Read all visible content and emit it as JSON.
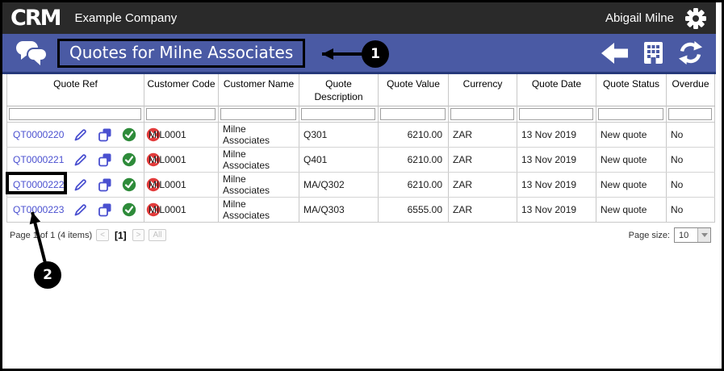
{
  "topbar": {
    "logo": "CRM",
    "company": "Example Company",
    "user": "Abigail Milne"
  },
  "toolbar": {
    "title": "Quotes for Milne Associates"
  },
  "icons": {
    "topbar_right": "gear-icon",
    "toolbar_left": "chat-bubbles-icon",
    "toolbar_right": [
      "back-arrow-icon",
      "building-icon",
      "refresh-icon"
    ],
    "row_actions": [
      "pencil-edit-icon",
      "copy-icon",
      "check-circle-icon",
      "x-circle-icon"
    ]
  },
  "colors": {
    "topbar_bg": "#2a2a2a",
    "toolbar_bg": "#4a5aa4",
    "toolbar_border": "#26397a",
    "link_blue": "#4a50d0",
    "action_green": "#2e8b3a",
    "action_red": "#e23b3b",
    "annotation_black": "#000000"
  },
  "table": {
    "columns": [
      "Quote Ref",
      "Customer Code",
      "Customer Name",
      "Quote Description",
      "Quote Value",
      "Currency",
      "Quote Date",
      "Quote Status",
      "Overdue"
    ],
    "rows": [
      {
        "ref": "QT0000220",
        "code": "MIL0001",
        "name": "Milne Associates",
        "desc": "Q301",
        "value": "6210.00",
        "currency": "ZAR",
        "date": "13 Nov 2019",
        "status": "New quote",
        "overdue": "No"
      },
      {
        "ref": "QT0000221",
        "code": "MIL0001",
        "name": "Milne Associates",
        "desc": "Q401",
        "value": "6210.00",
        "currency": "ZAR",
        "date": "13 Nov 2019",
        "status": "New quote",
        "overdue": "No"
      },
      {
        "ref": "QT0000222",
        "code": "MIL0001",
        "name": "Milne Associates",
        "desc": "MA/Q302",
        "value": "6210.00",
        "currency": "ZAR",
        "date": "13 Nov 2019",
        "status": "New quote",
        "overdue": "No"
      },
      {
        "ref": "QT0000223",
        "code": "MIL0001",
        "name": "Milne Associates",
        "desc": "MA/Q303",
        "value": "6555.00",
        "currency": "ZAR",
        "date": "13 Nov 2019",
        "status": "New quote",
        "overdue": "No"
      }
    ]
  },
  "pager": {
    "summary": "Page 1 of 1 (4 items)",
    "prev_label": "<",
    "current_label": "[1]",
    "next_label": ">",
    "all_label": "All",
    "page_size_label": "Page size:",
    "page_size_value": "10"
  },
  "annotations": [
    {
      "label": "1"
    },
    {
      "label": "2"
    }
  ]
}
